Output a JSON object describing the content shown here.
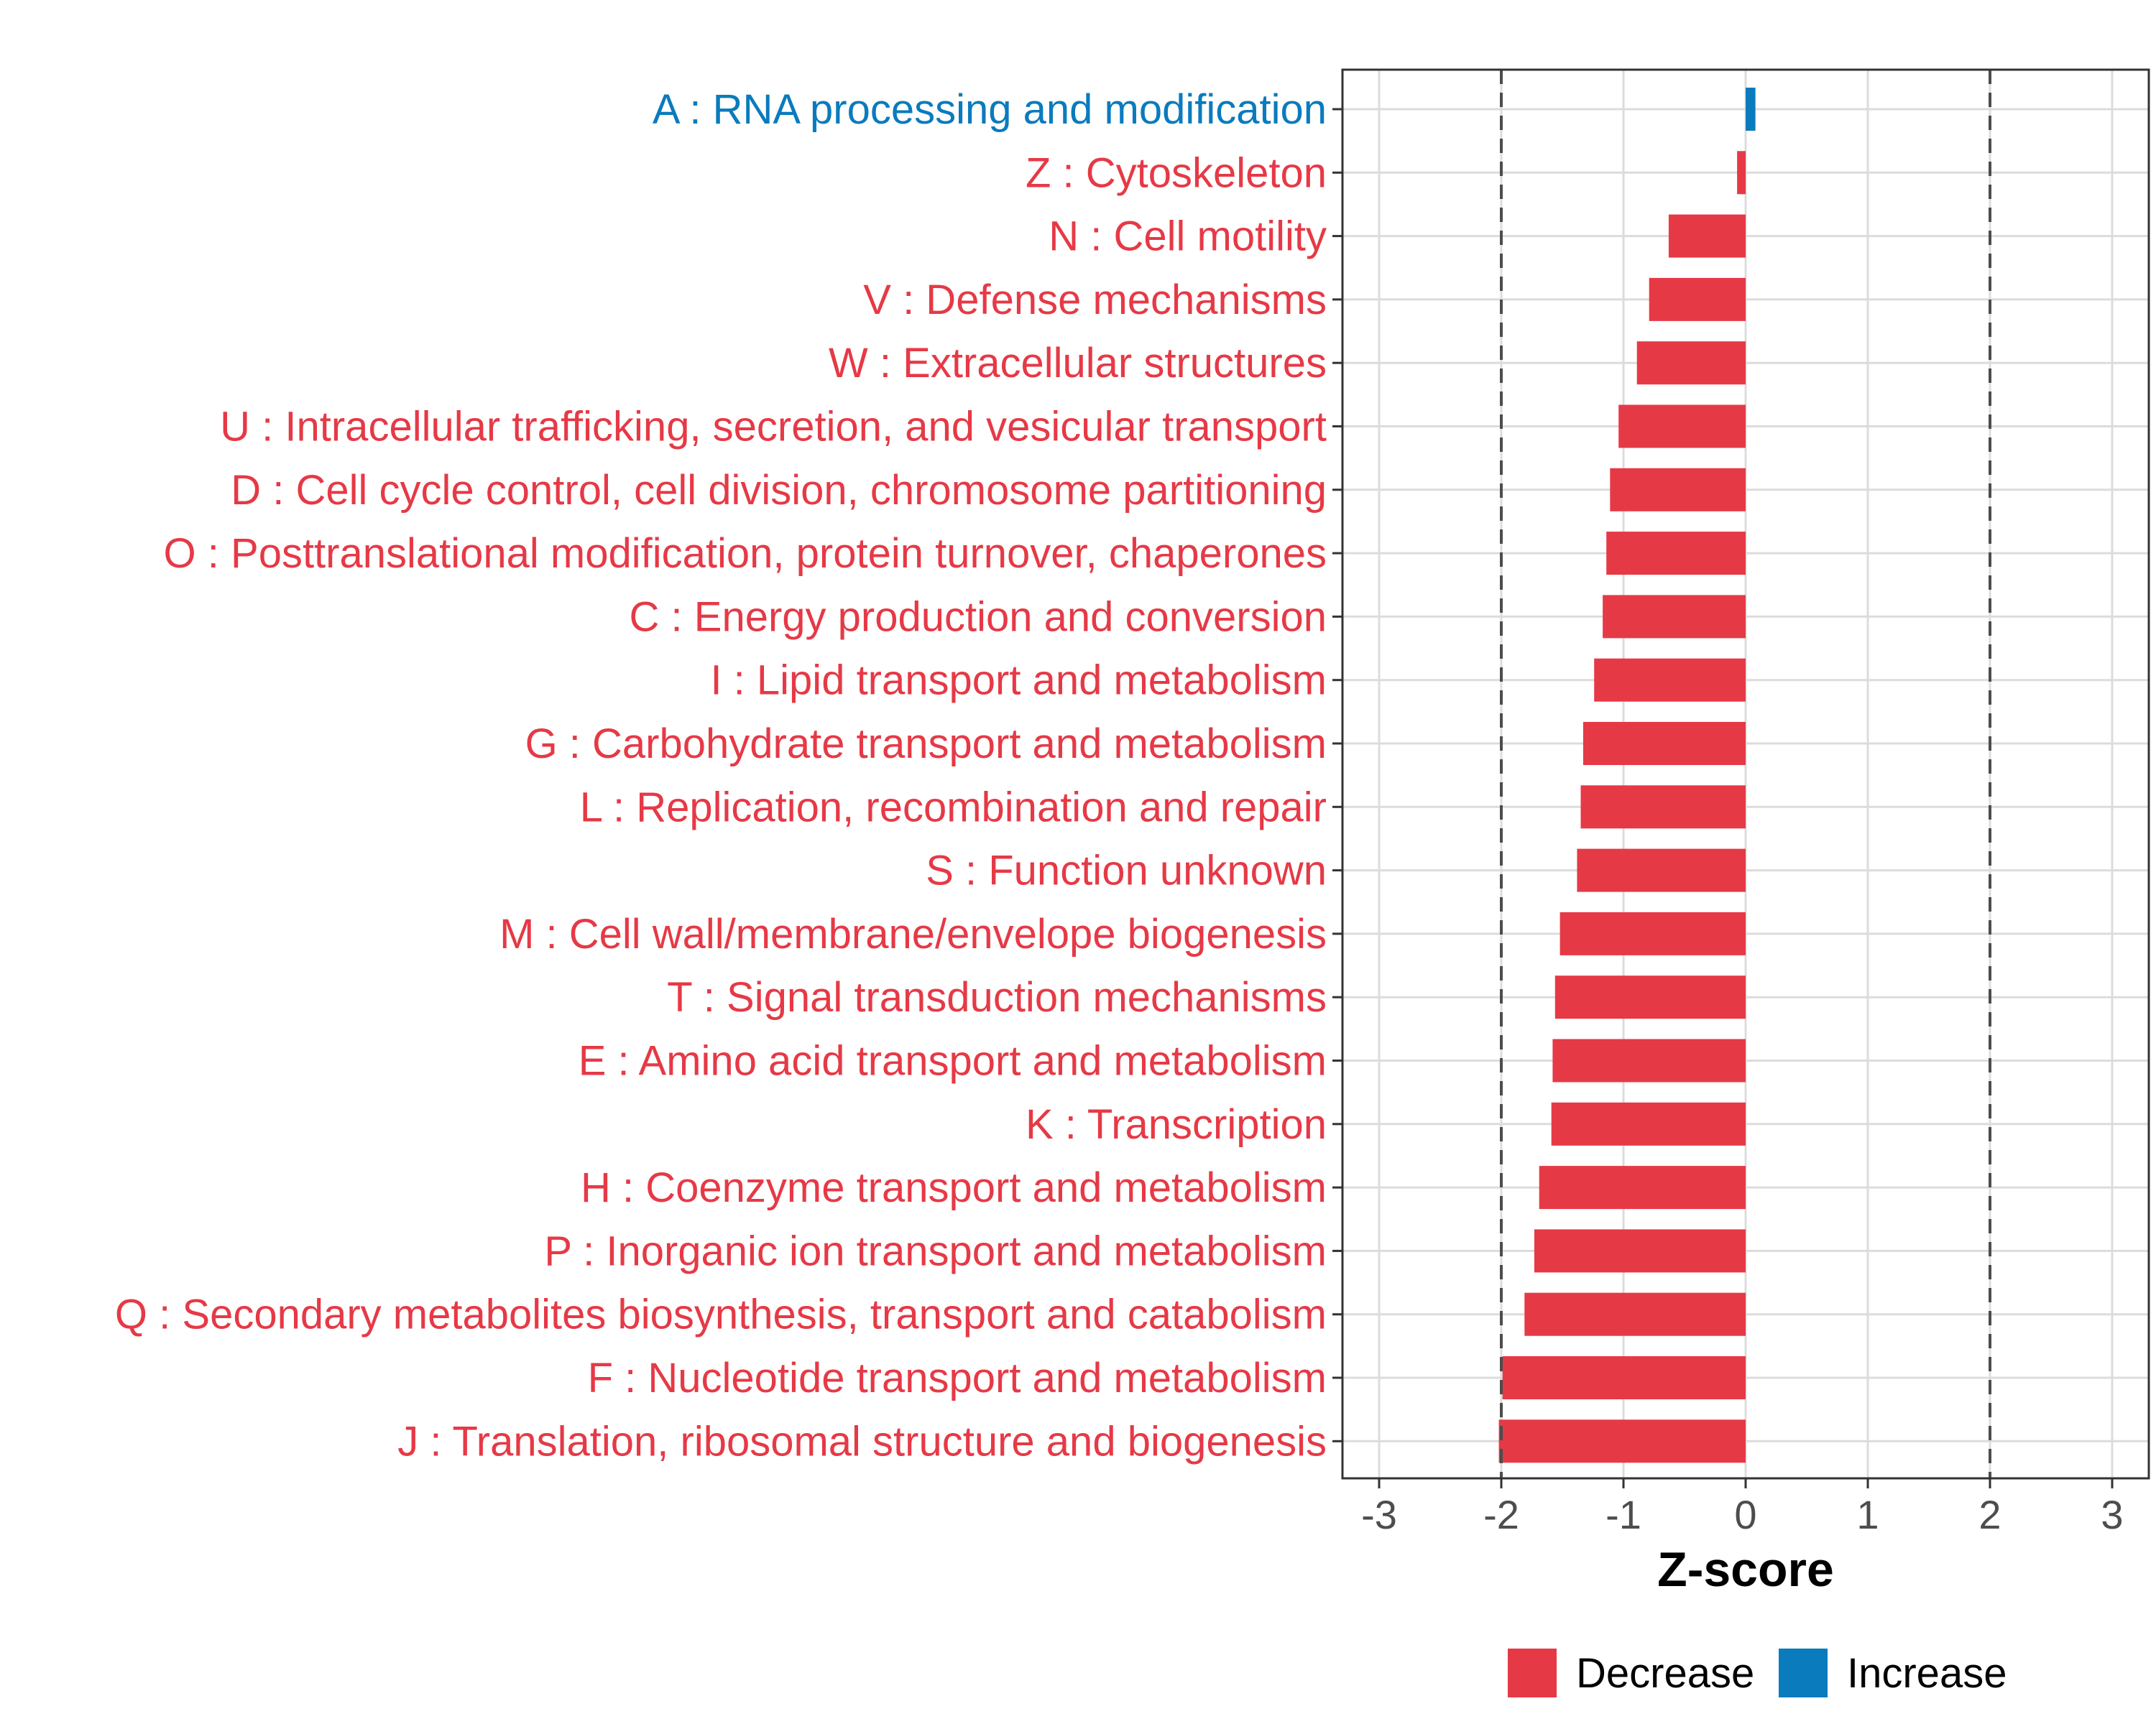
{
  "chart_data": {
    "type": "bar",
    "orientation": "horizontal",
    "title": "",
    "xlabel": "Z-score",
    "ylabel": "",
    "xlim": [
      -3.3,
      3.3
    ],
    "xticks": [
      -3,
      -2,
      -1,
      0,
      1,
      2,
      3
    ],
    "xtick_labels": [
      "-3",
      "-2",
      "-1",
      "0",
      "1",
      "2",
      "3"
    ],
    "reference_lines": [
      -2,
      2
    ],
    "grid": true,
    "categories": [
      "A : RNA processing and modification",
      "Z : Cytoskeleton",
      "N : Cell motility",
      "V : Defense mechanisms",
      "W : Extracellular structures",
      "U : Intracellular trafficking, secretion, and vesicular transport",
      "D : Cell cycle control, cell division, chromosome partitioning",
      "O : Posttranslational modification, protein turnover, chaperones",
      "C : Energy production and conversion",
      "I : Lipid transport and metabolism",
      "G : Carbohydrate transport and metabolism",
      "L : Replication, recombination and repair",
      "S : Function unknown",
      "M : Cell wall/membrane/envelope biogenesis",
      "T : Signal transduction mechanisms",
      "E : Amino acid transport and metabolism",
      "K : Transcription",
      "H : Coenzyme transport and metabolism",
      "P : Inorganic ion transport and metabolism",
      "Q : Secondary metabolites biosynthesis, transport and catabolism",
      "F : Nucleotide transport and metabolism",
      "J : Translation, ribosomal structure and biogenesis"
    ],
    "values": [
      0.08,
      -0.07,
      -0.63,
      -0.79,
      -0.89,
      -1.04,
      -1.11,
      -1.14,
      -1.17,
      -1.24,
      -1.33,
      -1.35,
      -1.38,
      -1.52,
      -1.56,
      -1.58,
      -1.59,
      -1.69,
      -1.73,
      -1.81,
      -1.99,
      -2.02
    ],
    "direction": [
      "Increase",
      "Decrease",
      "Decrease",
      "Decrease",
      "Decrease",
      "Decrease",
      "Decrease",
      "Decrease",
      "Decrease",
      "Decrease",
      "Decrease",
      "Decrease",
      "Decrease",
      "Decrease",
      "Decrease",
      "Decrease",
      "Decrease",
      "Decrease",
      "Decrease",
      "Decrease",
      "Decrease",
      "Decrease"
    ],
    "legend": {
      "placement": "bottom",
      "entries": [
        {
          "label": "Decrease",
          "color": "#e63946"
        },
        {
          "label": "Increase",
          "color": "#0a7bbd"
        }
      ]
    },
    "colors": {
      "Decrease": "#e63946",
      "Increase": "#0a7bbd",
      "grid": "#dcdcdc",
      "reference_line": "#4d4d4d",
      "panel_border": "#333333"
    }
  }
}
